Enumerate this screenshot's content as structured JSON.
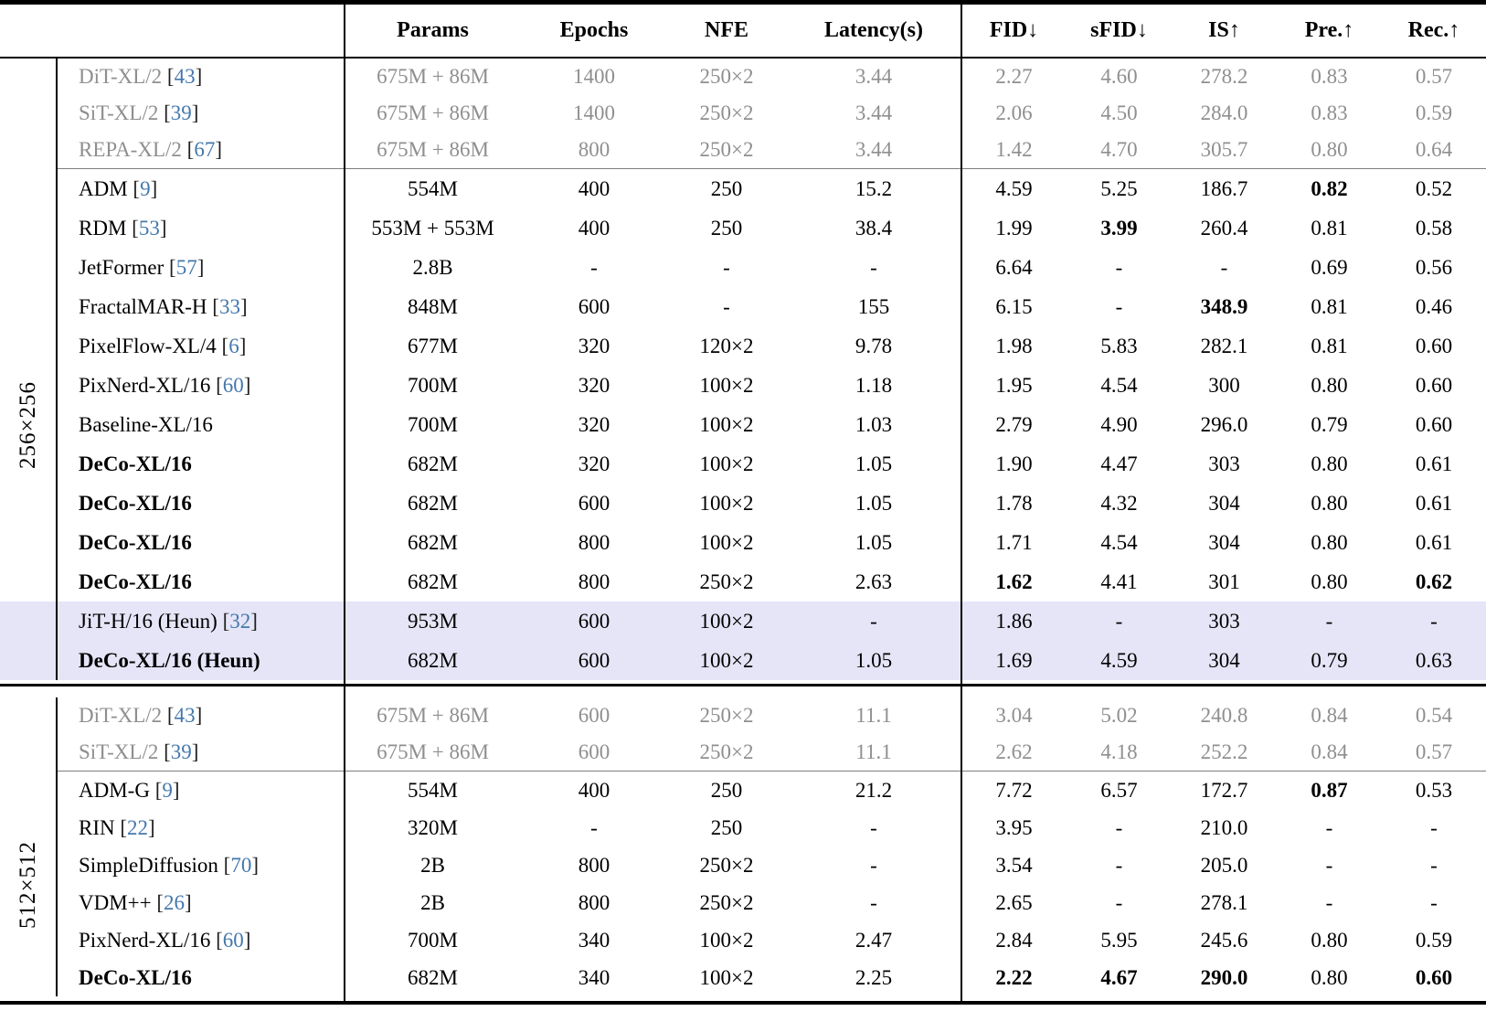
{
  "header": {
    "cols": [
      "",
      "Params",
      "Epochs",
      "NFE",
      "Latency(s)",
      "FID↓",
      "sFID↓",
      "IS↑",
      "Pre.↑",
      "Rec.↑"
    ]
  },
  "colors": {
    "citation_blue": "#4478ad",
    "muted_gray": "#8f8f8f",
    "highlight_lavender": "#e5e5f7",
    "rule_black": "#000000",
    "thin_rule_gray": "#7d7d7d"
  },
  "column_keys": [
    "params",
    "epochs",
    "nfe",
    "latency",
    "fid",
    "sfid",
    "is",
    "pre",
    "rec"
  ],
  "sections": [
    {
      "group_label": "256×256",
      "rows": [
        {
          "model": "DiT-XL/2",
          "cite": "43",
          "gray": true,
          "cells": [
            "675M + 86M",
            "1400",
            "250×2",
            "3.44",
            "2.27",
            "4.60",
            "278.2",
            "0.83",
            "0.57"
          ]
        },
        {
          "model": "SiT-XL/2",
          "cite": "39",
          "gray": true,
          "cells": [
            "675M + 86M",
            "1400",
            "250×2",
            "3.44",
            "2.06",
            "4.50",
            "284.0",
            "0.83",
            "0.59"
          ]
        },
        {
          "model": "REPA-XL/2",
          "cite": "67",
          "gray": true,
          "cells": [
            "675M + 86M",
            "800",
            "250×2",
            "3.44",
            "1.42",
            "4.70",
            "305.7",
            "0.80",
            "0.64"
          ]
        },
        {
          "model": "ADM",
          "cite": "9",
          "cells": [
            "554M",
            "400",
            "250",
            "15.2",
            "4.59",
            "5.25",
            "186.7",
            "0.82",
            "0.52"
          ],
          "bold_cells": [
            7
          ]
        },
        {
          "model": "RDM",
          "cite": "53",
          "cells": [
            "553M + 553M",
            "400",
            "250",
            "38.4",
            "1.99",
            "3.99",
            "260.4",
            "0.81",
            "0.58"
          ],
          "bold_cells": [
            5
          ]
        },
        {
          "model": "JetFormer",
          "cite": "57",
          "cells": [
            "2.8B",
            "-",
            "-",
            "-",
            "6.64",
            "-",
            "-",
            "0.69",
            "0.56"
          ]
        },
        {
          "model": "FractalMAR-H",
          "cite": "33",
          "cells": [
            "848M",
            "600",
            "-",
            "155",
            "6.15",
            "-",
            "348.9",
            "0.81",
            "0.46"
          ],
          "bold_cells": [
            6
          ]
        },
        {
          "model": "PixelFlow-XL/4",
          "cite": "6",
          "cells": [
            "677M",
            "320",
            "120×2",
            "9.78",
            "1.98",
            "5.83",
            "282.1",
            "0.81",
            "0.60"
          ]
        },
        {
          "model": "PixNerd-XL/16",
          "cite": "60",
          "cells": [
            "700M",
            "320",
            "100×2",
            "1.18",
            "1.95",
            "4.54",
            "300",
            "0.80",
            "0.60"
          ]
        },
        {
          "model": "Baseline-XL/16",
          "cells": [
            "700M",
            "320",
            "100×2",
            "1.03",
            "2.79",
            "4.90",
            "296.0",
            "0.79",
            "0.60"
          ]
        },
        {
          "model": "DeCo-XL/16",
          "bold_model": true,
          "cells": [
            "682M",
            "320",
            "100×2",
            "1.05",
            "1.90",
            "4.47",
            "303",
            "0.80",
            "0.61"
          ]
        },
        {
          "model": "DeCo-XL/16",
          "bold_model": true,
          "cells": [
            "682M",
            "600",
            "100×2",
            "1.05",
            "1.78",
            "4.32",
            "304",
            "0.80",
            "0.61"
          ]
        },
        {
          "model": "DeCo-XL/16",
          "bold_model": true,
          "cells": [
            "682M",
            "800",
            "100×2",
            "1.05",
            "1.71",
            "4.54",
            "304",
            "0.80",
            "0.61"
          ]
        },
        {
          "model": "DeCo-XL/16",
          "bold_model": true,
          "cells": [
            "682M",
            "800",
            "250×2",
            "2.63",
            "1.62",
            "4.41",
            "301",
            "0.80",
            "0.62"
          ],
          "bold_cells": [
            4,
            8
          ]
        },
        {
          "model": "JiT-H/16 (Heun)",
          "cite": "32",
          "highlight": true,
          "cells": [
            "953M",
            "600",
            "100×2",
            "-",
            "1.86",
            "-",
            "303",
            "-",
            "-"
          ]
        },
        {
          "model": "DeCo-XL/16 (Heun)",
          "bold_model": true,
          "highlight": true,
          "cells": [
            "682M",
            "600",
            "100×2",
            "1.05",
            "1.69",
            "4.59",
            "304",
            "0.79",
            "0.63"
          ]
        }
      ]
    },
    {
      "group_label": "512×512",
      "rows": [
        {
          "model": "DiT-XL/2",
          "cite": "43",
          "gray": true,
          "cells": [
            "675M + 86M",
            "600",
            "250×2",
            "11.1",
            "3.04",
            "5.02",
            "240.8",
            "0.84",
            "0.54"
          ]
        },
        {
          "model": "SiT-XL/2",
          "cite": "39",
          "gray": true,
          "cells": [
            "675M + 86M",
            "600",
            "250×2",
            "11.1",
            "2.62",
            "4.18",
            "252.2",
            "0.84",
            "0.57"
          ]
        },
        {
          "model": "ADM-G",
          "cite": "9",
          "cells": [
            "554M",
            "400",
            "250",
            "21.2",
            "7.72",
            "6.57",
            "172.7",
            "0.87",
            "0.53"
          ],
          "bold_cells": [
            7
          ]
        },
        {
          "model": "RIN",
          "cite": "22",
          "cells": [
            "320M",
            "-",
            "250",
            "-",
            "3.95",
            "-",
            "210.0",
            "-",
            "-"
          ]
        },
        {
          "model": "SimpleDiffusion",
          "cite": "70",
          "cells": [
            "2B",
            "800",
            "250×2",
            "-",
            "3.54",
            "-",
            "205.0",
            "-",
            "-"
          ]
        },
        {
          "model": "VDM++",
          "cite": "26",
          "cells": [
            "2B",
            "800",
            "250×2",
            "-",
            "2.65",
            "-",
            "278.1",
            "-",
            "-"
          ]
        },
        {
          "model": "PixNerd-XL/16",
          "cite": "60",
          "cells": [
            "700M",
            "340",
            "100×2",
            "2.47",
            "2.84",
            "5.95",
            "245.6",
            "0.80",
            "0.59"
          ]
        },
        {
          "model": "DeCo-XL/16",
          "bold_model": true,
          "cells": [
            "682M",
            "340",
            "100×2",
            "2.25",
            "2.22",
            "4.67",
            "290.0",
            "0.80",
            "0.60"
          ],
          "bold_cells": [
            4,
            5,
            6,
            8
          ]
        }
      ]
    }
  ]
}
